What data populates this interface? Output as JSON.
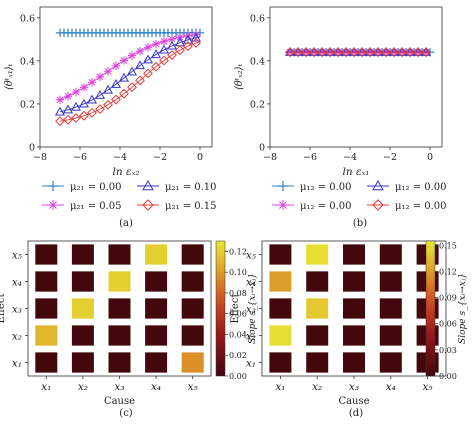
{
  "chart_data": [
    {
      "panel": "(a)",
      "type": "line",
      "ylabel": "⟨θᵗₓ₁⟩ₜ",
      "xlabel": "ln εₓ₂",
      "xlim": [
        -8,
        0.6
      ],
      "ylim": [
        0,
        0.65
      ],
      "xticks": [
        "−8",
        "−6",
        "−4",
        "−2",
        "0"
      ],
      "yticks": [
        "0",
        "0.2",
        "0.4",
        "0.6"
      ],
      "x": [
        -7.0,
        -6.8,
        -6.6,
        -6.4,
        -6.2,
        -6.0,
        -5.8,
        -5.6,
        -5.4,
        -5.2,
        -5.0,
        -4.8,
        -4.6,
        -4.4,
        -4.2,
        -4.0,
        -3.8,
        -3.6,
        -3.4,
        -3.2,
        -3.0,
        -2.8,
        -2.6,
        -2.4,
        -2.2,
        -2.0,
        -1.8,
        -1.6,
        -1.4,
        -1.2,
        -1.0,
        -0.8,
        -0.6,
        -0.4,
        -0.2,
        0.0
      ],
      "series": [
        {
          "name": "μ₂₁ = 0.00",
          "marker": "plus",
          "color": "#2e7fc4",
          "curve": [
            0.53,
            0.53,
            0.53
          ]
        },
        {
          "name": "μ₂₁ = 0.05",
          "marker": "star",
          "color": "#e040e0",
          "curve": [
            0.15,
            0.54,
            -4.7,
            1.5
          ]
        },
        {
          "name": "μ₂₁ = 0.10",
          "marker": "triangle",
          "color": "#3636c8",
          "curve": [
            0.13,
            0.54,
            -3.6,
            1.4
          ]
        },
        {
          "name": "μ₂₁ = 0.15",
          "marker": "diamond",
          "color": "#e03c3c",
          "curve": [
            0.1,
            0.535,
            -2.9,
            1.35
          ]
        }
      ],
      "legend": "bottom"
    },
    {
      "panel": "(b)",
      "type": "line",
      "ylabel": "⟨θᵗₓ₂⟩ₜ",
      "xlabel": "ln εₓ₁",
      "xlim": [
        -8,
        0.6
      ],
      "ylim": [
        0,
        0.65
      ],
      "xticks": [
        "−8",
        "−6",
        "−4",
        "−2",
        "0"
      ],
      "yticks": [
        "0",
        "0.2",
        "0.4",
        "0.6"
      ],
      "x": [
        -7.0,
        -6.8,
        -6.6,
        -6.4,
        -6.2,
        -6.0,
        -5.8,
        -5.6,
        -5.4,
        -5.2,
        -5.0,
        -4.8,
        -4.6,
        -4.4,
        -4.2,
        -4.0,
        -3.8,
        -3.6,
        -3.4,
        -3.2,
        -3.0,
        -2.8,
        -2.6,
        -2.4,
        -2.2,
        -2.0,
        -1.8,
        -1.6,
        -1.4,
        -1.2,
        -1.0,
        -0.8,
        -0.6,
        -0.4,
        -0.2,
        0.0
      ],
      "series": [
        {
          "name": "μ₁₂ = 0.00",
          "marker": "plus",
          "color": "#2e7fc4",
          "value": 0.44
        },
        {
          "name": "μ₁₂ = 0.00",
          "marker": "star",
          "color": "#e040e0",
          "value": 0.44
        },
        {
          "name": "μ₁₂ = 0.00",
          "marker": "triangle",
          "color": "#3636c8",
          "value": 0.44
        },
        {
          "name": "μ₁₂ = 0.00",
          "marker": "diamond",
          "color": "#e03c3c",
          "value": 0.44
        }
      ],
      "legend": "bottom"
    },
    {
      "panel": "(c)",
      "type": "heatmap",
      "xlabel": "Cause",
      "ylabel": "Effect",
      "x_categories": [
        "x₁",
        "x₂",
        "x₃",
        "x₄",
        "x₅"
      ],
      "y_categories": [
        "x₅",
        "x₄",
        "x₃",
        "x₂",
        "x₁"
      ],
      "values": [
        [
          0.0,
          0.0,
          0.0,
          0.12,
          0.0
        ],
        [
          0.0,
          0.0,
          0.12,
          0.0,
          0.0
        ],
        [
          0.0,
          0.12,
          0.0,
          0.0,
          0.0
        ],
        [
          0.11,
          0.0,
          0.0,
          0.0,
          0.0
        ],
        [
          0.0,
          0.0,
          0.0,
          0.0,
          0.095
        ]
      ],
      "colorbar_label": "Slope s_{xᵢ→xⱼ}",
      "colorbar_ticks": [
        0.0,
        0.02,
        0.04,
        0.06,
        0.08,
        0.1,
        0.12
      ],
      "colorbar_tick_labels": [
        "0.00",
        "0.02",
        "0.04",
        "0.06",
        "0.08",
        "0.10",
        "0.12"
      ],
      "vmax": 0.13
    },
    {
      "panel": "(d)",
      "type": "heatmap",
      "xlabel": "Cause",
      "ylabel": "Effect",
      "x_categories": [
        "x₁",
        "x₂",
        "x₃",
        "x₄",
        "x₅"
      ],
      "y_categories": [
        "x₅",
        "x₄",
        "x₃",
        "x₂",
        "x₁"
      ],
      "values": [
        [
          0.0,
          0.15,
          0.0,
          0.0,
          0.0
        ],
        [
          0.12,
          0.0,
          0.0,
          0.0,
          0.0
        ],
        [
          0.0,
          0.14,
          0.0,
          0.0,
          0.0
        ],
        [
          0.15,
          0.0,
          0.0,
          0.0,
          0.0
        ],
        [
          0.0,
          0.0,
          0.0,
          0.0,
          0.0
        ]
      ],
      "colorbar_label": "Slope s_{xᵢ→xⱼ}",
      "colorbar_ticks": [
        0.0,
        0.03,
        0.06,
        0.09,
        0.12,
        0.15
      ],
      "colorbar_tick_labels": [
        "0.00",
        "0.03",
        "0.06",
        "0.09",
        "0.12",
        "0.15"
      ],
      "vmax": 0.155
    }
  ]
}
